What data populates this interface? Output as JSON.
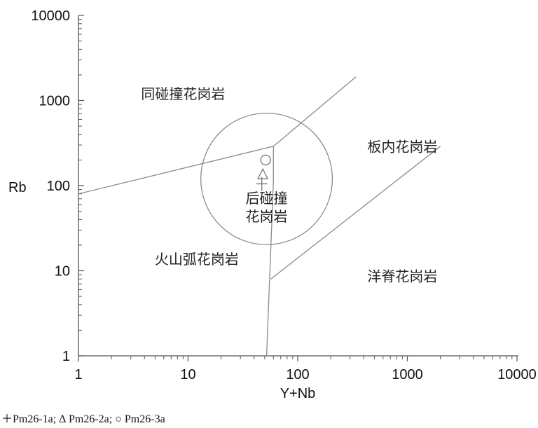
{
  "chart_data": {
    "type": "scatter",
    "xlabel": "Y+Nb",
    "ylabel": "Rb",
    "x_scale": "log",
    "y_scale": "log",
    "xlim": [
      1,
      10000
    ],
    "ylim": [
      1,
      10000
    ],
    "x_ticks": [
      "1",
      "10",
      "100",
      "1000",
      "10000"
    ],
    "y_ticks": [
      "1",
      "10",
      "100",
      "1000",
      "10000"
    ],
    "grid": false,
    "boundaries": [
      [
        [
          1,
          80
        ],
        [
          60,
          290
        ]
      ],
      [
        [
          60,
          290
        ],
        [
          340,
          1900
        ]
      ],
      [
        [
          60,
          290
        ],
        [
          60,
          110
        ]
      ],
      [
        [
          60,
          110
        ],
        [
          52,
          1
        ]
      ],
      [
        [
          57,
          8
        ],
        [
          2000,
          290
        ]
      ]
    ],
    "circle": {
      "center": [
        52,
        120
      ],
      "radius_decades": 0.6
    },
    "regions": [
      {
        "label": "同碰撞花岗岩",
        "x": 9,
        "y": 1050
      },
      {
        "label": "板内花岗岩",
        "x": 900,
        "y": 250
      },
      {
        "label": "后碰撞",
        "x": 52,
        "y": 62
      },
      {
        "label": "花岗岩",
        "x": 52,
        "y": 38
      },
      {
        "label": "火山弧花岗岩",
        "x": 12,
        "y": 12
      },
      {
        "label": "洋脊花岗岩",
        "x": 900,
        "y": 7.5
      }
    ],
    "series": [
      {
        "name": "Pm26-1a",
        "marker": "plus",
        "points": [
          [
            47,
            105
          ]
        ]
      },
      {
        "name": "Pm26-2a",
        "marker": "triangle",
        "points": [
          [
            48,
            135
          ]
        ]
      },
      {
        "name": "Pm26-3a",
        "marker": "circle",
        "points": [
          [
            51,
            200
          ]
        ]
      }
    ],
    "legend": {
      "position": "bottom-left",
      "text": "＋Pm26-1a; ∆ Pm26-2a; ○ Pm26-3a"
    }
  }
}
